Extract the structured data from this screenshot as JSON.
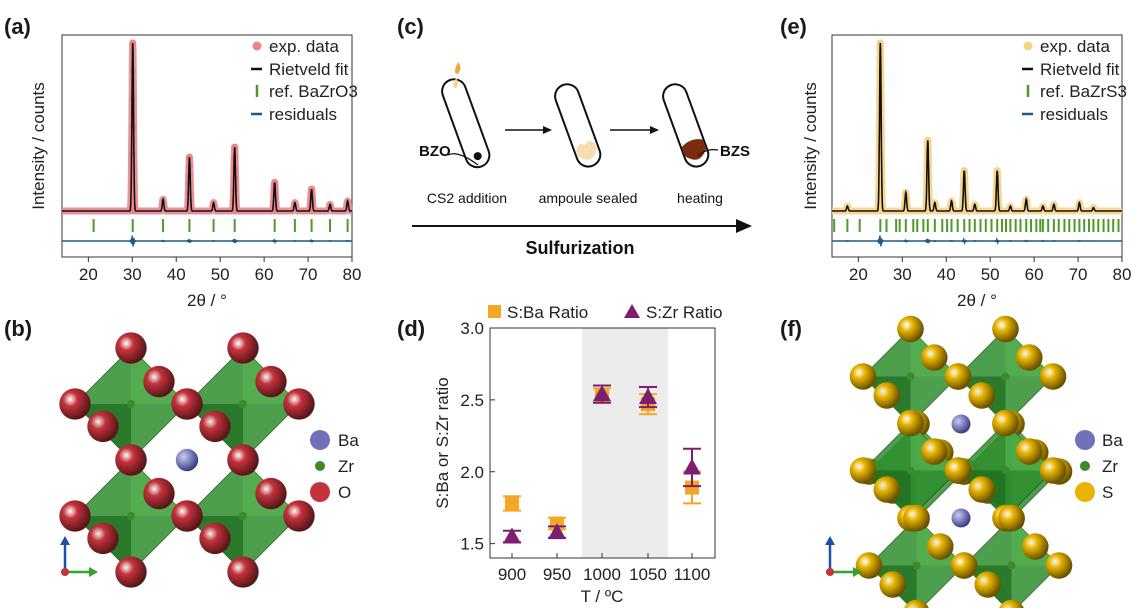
{
  "panels": {
    "a": {
      "label": "(a)",
      "ylabel": "Intensity / counts",
      "xlabel": "2θ / °",
      "legend": [
        "exp. data",
        "Rietveld fit",
        "ref. BaZrO3",
        "residuals"
      ],
      "xticks": [
        "20",
        "30",
        "40",
        "50",
        "60",
        "70",
        "80"
      ]
    },
    "b": {
      "label": "(b)",
      "legend": [
        "Ba",
        "Zr",
        "O"
      ]
    },
    "c": {
      "label": "(c)",
      "steps": [
        "CS2 addition",
        "ampoule sealed",
        "heating"
      ],
      "tags": [
        "BZO",
        "BZS"
      ],
      "arrow_label": "Sulfurization"
    },
    "e": {
      "label": "(e)",
      "ylabel": "Intensity / counts",
      "xlabel": "2θ / °",
      "legend": [
        "exp. data",
        "Rietveld fit",
        "ref. BaZrS3",
        "residuals"
      ],
      "xticks": [
        "20",
        "30",
        "40",
        "50",
        "60",
        "70",
        "80"
      ]
    },
    "f": {
      "label": "(f)",
      "legend": [
        "Ba",
        "Zr",
        "S"
      ]
    }
  },
  "colors": {
    "exp_a": "#e8868c",
    "exp_e": "#f7d38a",
    "fit": "#111111",
    "ref": "#4d9a2a",
    "residual": "#1f5a86",
    "sba": "#f5a623",
    "szr": "#7b1f6e",
    "ba": "#6f72b8",
    "zr": "#3d8a2a",
    "o": "#c4323b",
    "s": "#e8b400",
    "octa": "#2f8f2f"
  },
  "chart_data": [
    {
      "type": "line",
      "panel": "a",
      "xlabel": "2θ / °",
      "ylabel": "Intensity / counts",
      "xlim": [
        14,
        80
      ],
      "peaks_2theta": [
        30.1,
        37.0,
        43.0,
        48.5,
        53.3,
        62.4,
        67.0,
        70.8,
        75.0,
        79.0
      ],
      "peak_heights": [
        1.0,
        0.07,
        0.32,
        0.05,
        0.38,
        0.17,
        0.05,
        0.13,
        0.04,
        0.06
      ],
      "ref_ticks_2theta": [
        21.2,
        30.1,
        37.0,
        43.0,
        48.5,
        53.3,
        62.4,
        67.0,
        70.8,
        75.0,
        79.0
      ]
    },
    {
      "type": "scatter",
      "panel": "d",
      "xlabel": "T / ºC",
      "ylabel": "S:Ba or S:Zr ratio",
      "categories": [
        "900",
        "950",
        "1000",
        "1050",
        "1100"
      ],
      "ylim": [
        1.4,
        3.0
      ],
      "yticks": [
        "1.5",
        "2.0",
        "2.5",
        "3.0"
      ],
      "shaded_region": [
        "1000",
        "1050"
      ],
      "series": [
        {
          "name": "S:Ba Ratio",
          "marker": "square",
          "values": [
            1.78,
            1.64,
            2.53,
            2.47,
            1.89
          ],
          "errors": [
            0.05,
            0.04,
            0.05,
            0.07,
            0.11
          ]
        },
        {
          "name": "S:Zr Ratio",
          "marker": "triangle",
          "values": [
            1.55,
            1.58,
            2.54,
            2.52,
            2.03
          ],
          "errors": [
            0.04,
            0.04,
            0.06,
            0.07,
            0.13
          ]
        }
      ]
    },
    {
      "type": "line",
      "panel": "e",
      "xlabel": "2θ / °",
      "ylabel": "Intensity / counts",
      "xlim": [
        14,
        80
      ],
      "peaks_2theta": [
        17.5,
        25.0,
        30.8,
        35.8,
        37.4,
        41.2,
        44.1,
        46.5,
        51.6,
        54.6,
        58.2,
        62.0,
        64.5,
        70.3,
        73.5
      ],
      "peak_heights": [
        0.03,
        1.0,
        0.11,
        0.42,
        0.05,
        0.06,
        0.24,
        0.04,
        0.24,
        0.03,
        0.07,
        0.03,
        0.04,
        0.05,
        0.02
      ],
      "ref_ticks_2theta": [
        14.5,
        17.5,
        20.3,
        25.0,
        26.4,
        28.6,
        29.4,
        30.8,
        32.5,
        33.4,
        34.8,
        35.8,
        37.4,
        39.1,
        40.2,
        41.2,
        42.6,
        44.1,
        45.3,
        46.5,
        47.8,
        49.0,
        50.3,
        51.6,
        52.7,
        53.6,
        54.6,
        55.8,
        56.9,
        58.2,
        59.3,
        60.5,
        61.4,
        62.0,
        63.2,
        64.5,
        65.6,
        66.9,
        68.0,
        69.2,
        70.3,
        71.4,
        72.5,
        73.5,
        74.6,
        75.8,
        76.9,
        78.0,
        79.2
      ]
    }
  ]
}
